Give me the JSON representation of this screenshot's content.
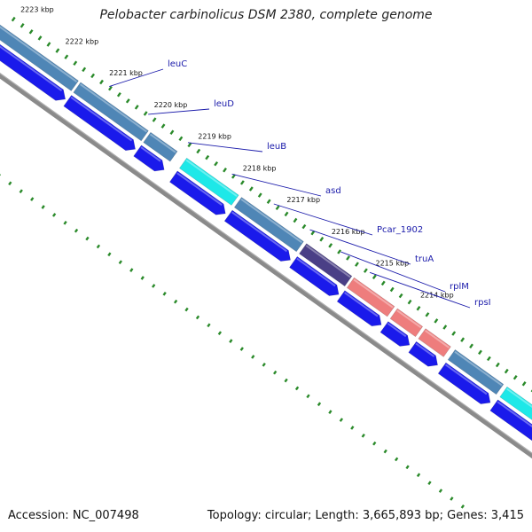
{
  "title": "Pelobacter carbinolicus DSM 2380, complete genome",
  "footer": {
    "accession": "Accession: NC_007498",
    "summary": "Topology: circular; Length: 3,665,893 bp; Genes: 3,415"
  },
  "ticks": [
    {
      "label": "2223 kbp"
    },
    {
      "label": "2222 kbp"
    },
    {
      "label": "2221 kbp"
    },
    {
      "label": "2220 kbp"
    },
    {
      "label": "2219 kbp"
    },
    {
      "label": "2218 kbp"
    },
    {
      "label": "2217 kbp"
    },
    {
      "label": "2216 kbp"
    },
    {
      "label": "2215 kbp"
    },
    {
      "label": "2214 kbp"
    }
  ],
  "gene_labels": [
    "leuC",
    "leuD",
    "leuB",
    "asd",
    "Pcar_1902",
    "truA",
    "rplM",
    "rpsI"
  ],
  "colors": {
    "steel": "#4f86b6",
    "cyan": "#1ee8e8",
    "navy": "#4a3f86",
    "salmon": "#ee7d7d",
    "blue": "#1a1aeb",
    "backbone": "#8a8a8a",
    "tick": "#2a8a2a",
    "label": "#1a1aaa"
  }
}
